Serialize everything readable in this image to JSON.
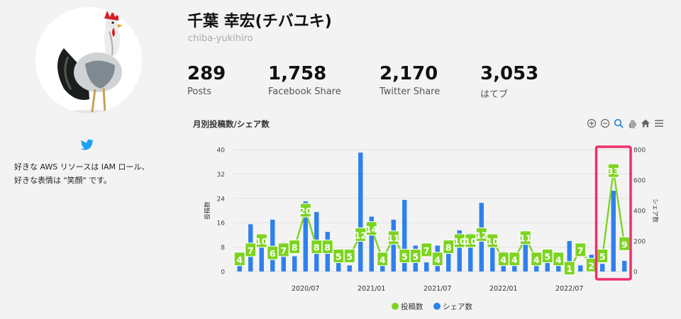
{
  "profile": {
    "name": "千葉 幸宏(チバユキ)",
    "handle": "chiba-yukihiro",
    "bio_lines": [
      "好きな AWS リソースは IAM ロール、",
      "好きな表情は \"笑顔\" です。"
    ]
  },
  "stats": [
    {
      "value": "289",
      "label": "Posts"
    },
    {
      "value": "1,758",
      "label": "Facebook Share"
    },
    {
      "value": "2,170",
      "label": "Twitter Share"
    },
    {
      "value": "3,053",
      "label": "はてブ"
    }
  ],
  "chart": {
    "title": "月別投稿数/シェア数",
    "toolbar_icons": [
      "zoom-in-icon",
      "zoom-out-icon",
      "selection-zoom-icon",
      "pan-icon",
      "home-icon",
      "menu-icon"
    ]
  },
  "chart_data": {
    "type": "bar+line",
    "x_tick_labels": [
      "2020/07",
      "2021/01",
      "2021/07",
      "2022/01",
      "2022/07"
    ],
    "ylabel_left": "投稿数",
    "ylabel_right": "シェア数",
    "ylim_left": [
      0,
      40
    ],
    "yticks_left": [
      0,
      8,
      16,
      24,
      32,
      40
    ],
    "ylim_right": [
      0,
      800
    ],
    "yticks_right": [
      0,
      200,
      400,
      600,
      800
    ],
    "legend": "bottom",
    "series": [
      {
        "name": "投稿数",
        "type": "line",
        "color": "#7ed321",
        "values": [
          4,
          7,
          10,
          6,
          7,
          8,
          20,
          8,
          8,
          5,
          5,
          12,
          14,
          4,
          11,
          5,
          5,
          7,
          4,
          8,
          10,
          10,
          12,
          10,
          4,
          4,
          11,
          4,
          5,
          4,
          1,
          7,
          2,
          5,
          33,
          9
        ]
      },
      {
        "name": "シェア数",
        "type": "bar",
        "color": "#2f80ed",
        "values": [
          45,
          310,
          230,
          340,
          190,
          100,
          460,
          390,
          260,
          140,
          40,
          780,
          360,
          60,
          340,
          470,
          170,
          60,
          170,
          120,
          270,
          250,
          450,
          240,
          130,
          120,
          240,
          90,
          60,
          80,
          200,
          40,
          110,
          50,
          530,
          70
        ]
      }
    ],
    "highlight": {
      "from_index": 33,
      "to_index": 35,
      "color": "#f0306a"
    }
  }
}
